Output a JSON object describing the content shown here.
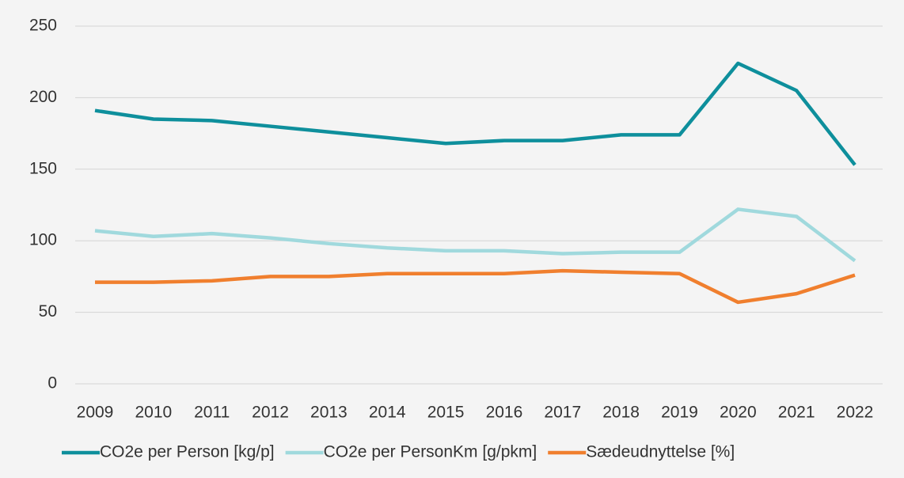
{
  "chart_data": {
    "type": "line",
    "categories": [
      "2009",
      "2010",
      "2011",
      "2012",
      "2013",
      "2014",
      "2015",
      "2016",
      "2017",
      "2018",
      "2019",
      "2020",
      "2021",
      "2022"
    ],
    "series": [
      {
        "name": "CO2e per Person [kg/p]",
        "color": "#0e8f9c",
        "values": [
          191,
          185,
          184,
          180,
          176,
          172,
          168,
          170,
          170,
          174,
          174,
          224,
          205,
          153
        ]
      },
      {
        "name": "CO2e per PersonKm [g/pkm]",
        "color": "#a0d9dd",
        "values": [
          107,
          103,
          105,
          102,
          98,
          95,
          93,
          93,
          91,
          92,
          92,
          122,
          117,
          86
        ]
      },
      {
        "name": "Sædeudnyttelse [%]",
        "color": "#f07f2e",
        "values": [
          71,
          71,
          72,
          75,
          75,
          77,
          77,
          77,
          79,
          78,
          77,
          57,
          63,
          76
        ]
      }
    ],
    "ylim": [
      0,
      250
    ],
    "yticks": [
      0,
      50,
      100,
      150,
      200,
      250
    ],
    "grid": true,
    "legend": "bottom"
  }
}
